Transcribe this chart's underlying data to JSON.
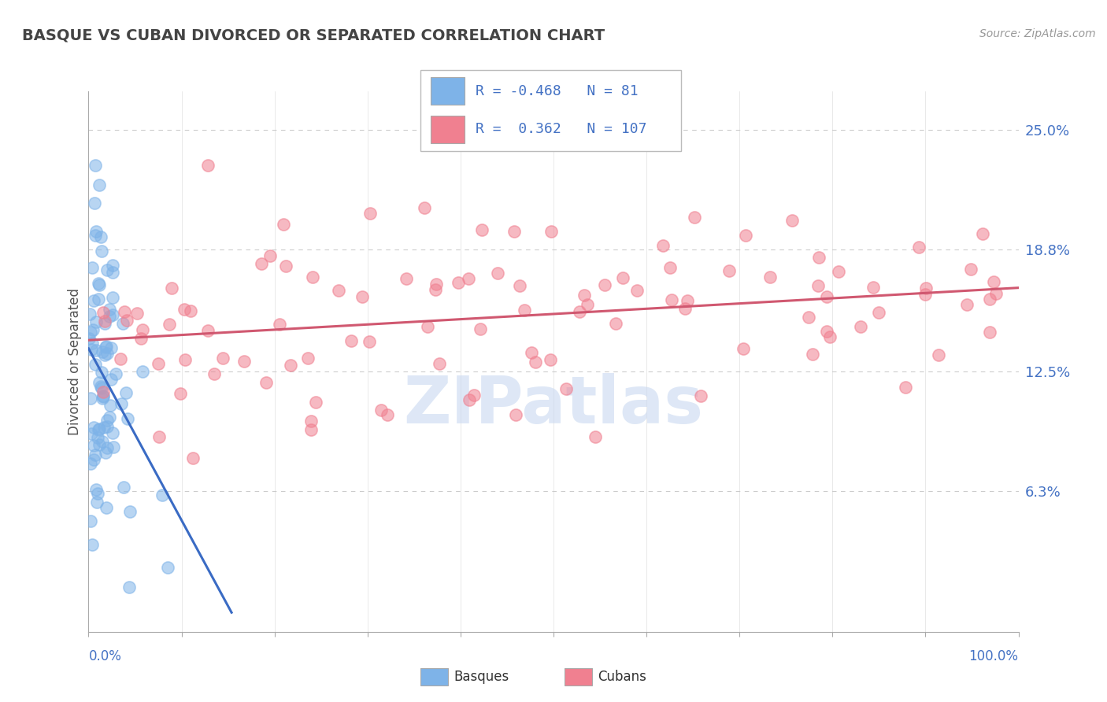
{
  "title": "BASQUE VS CUBAN DIVORCED OR SEPARATED CORRELATION CHART",
  "source": "Source: ZipAtlas.com",
  "ylabel": "Divorced or Separated",
  "legend_basque_R": "-0.468",
  "legend_basque_N": "81",
  "legend_cuban_R": "0.362",
  "legend_cuban_N": "107",
  "basque_color": "#7EB3E8",
  "cuban_color": "#F08090",
  "basque_line_color": "#3A6BC4",
  "cuban_line_color": "#D05870",
  "watermark_text": "ZIPatlas",
  "watermark_color": "#C8D8F0",
  "background_color": "#FFFFFF",
  "grid_color": "#CCCCCC",
  "ytick_values": [
    0.0,
    6.3,
    12.5,
    18.8,
    25.0
  ],
  "ytick_labels": [
    "",
    "6.3%",
    "12.5%",
    "18.8%",
    "25.0%"
  ],
  "title_color": "#444444",
  "source_color": "#999999",
  "ylabel_color": "#555555",
  "tick_label_color": "#4472C4",
  "legend_label_color": "#4472C4",
  "bottom_legend_color": "#333333",
  "xmin": 0,
  "xmax": 100,
  "ymin": -1,
  "ymax": 27
}
